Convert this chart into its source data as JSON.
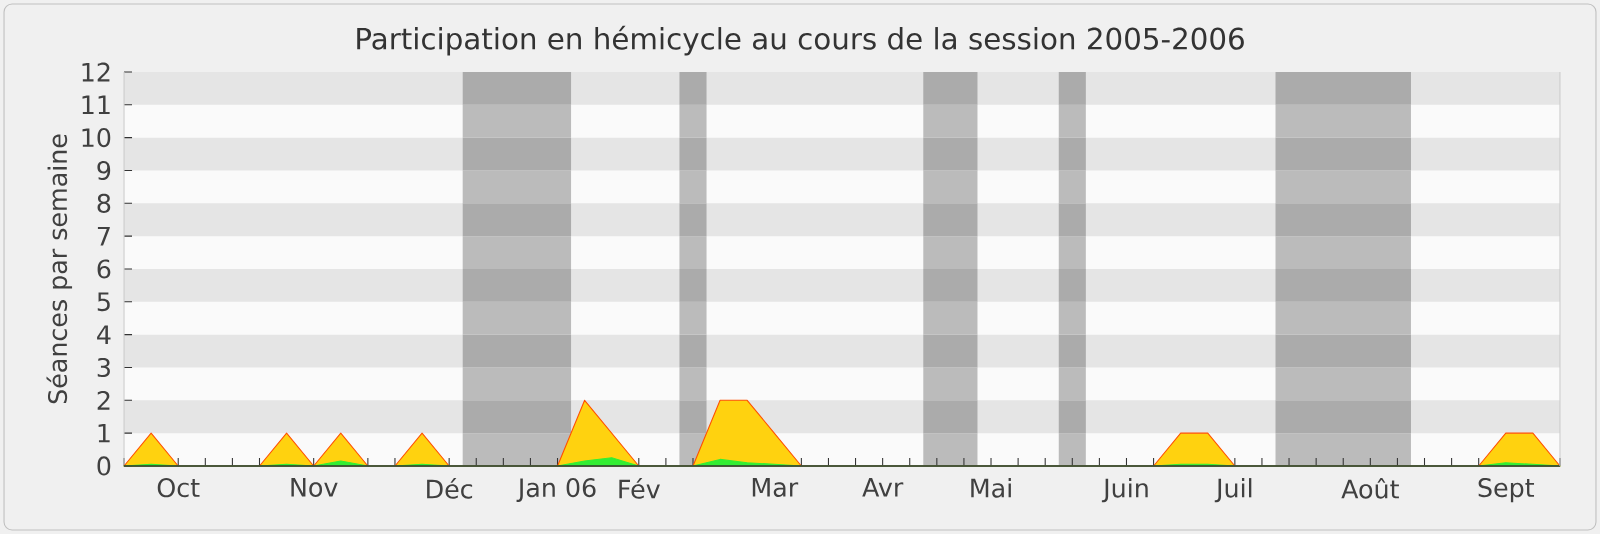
{
  "chart_data": {
    "type": "area",
    "title": "Participation en hémicycle au cours de la session 2005-2006",
    "ylabel": "Séances par semaine",
    "categories": [
      null,
      null,
      "Oct",
      null,
      null,
      null,
      null,
      "Nov",
      null,
      null,
      null,
      null,
      "Déc",
      null,
      null,
      null,
      "Jan 06",
      null,
      null,
      "Fév",
      null,
      null,
      null,
      null,
      "Mar",
      null,
      null,
      null,
      "Avr",
      null,
      null,
      null,
      "Mai",
      null,
      null,
      null,
      null,
      "Juin",
      null,
      null,
      null,
      "Juil",
      null,
      null,
      null,
      null,
      "Août",
      null,
      null,
      null,
      null,
      "Sept",
      null,
      null
    ],
    "series": [
      {
        "color": "#ffd20f",
        "values": [
          0,
          1,
          0,
          0,
          0,
          0,
          1,
          0,
          1,
          0,
          0,
          1,
          0,
          0,
          0,
          0,
          0,
          2,
          1,
          0,
          0,
          0,
          2,
          2,
          1,
          0,
          0,
          0,
          0,
          0,
          0,
          0,
          0,
          0,
          0,
          0,
          0,
          0,
          0,
          1,
          1,
          0,
          0,
          0,
          0,
          0,
          0,
          0,
          0,
          0,
          0,
          1,
          1,
          0
        ]
      },
      {
        "color": "#33ee33",
        "values": [
          0,
          0.05,
          0,
          0,
          0,
          0,
          0.05,
          0,
          0.15,
          0,
          0,
          0.05,
          0,
          0,
          0,
          0,
          0,
          0.15,
          0.25,
          0,
          0,
          0,
          0.2,
          0.1,
          0.05,
          0,
          0,
          0,
          0,
          0,
          0,
          0,
          0,
          0,
          0,
          0,
          0,
          0,
          0,
          0.05,
          0.05,
          0,
          0,
          0,
          0,
          0,
          0,
          0,
          0,
          0,
          0,
          0.1,
          0.05,
          0
        ]
      }
    ],
    "ylim": [
      0,
      12
    ],
    "yticks": [
      0,
      1,
      2,
      3,
      4,
      5,
      6,
      7,
      8,
      9,
      10,
      11,
      12
    ]
  }
}
